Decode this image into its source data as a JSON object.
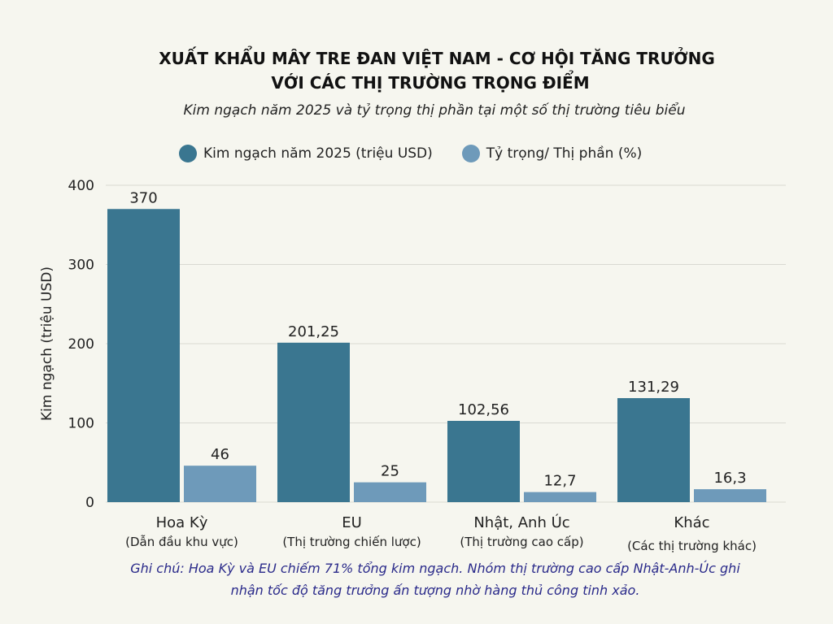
{
  "title_line1": "XUẤT KHẨU MÂY TRE ĐAN VIỆT NAM - CƠ HỘI TĂNG TRƯỞNG",
  "title_line2": "VỚI CÁC THỊ TRƯỜNG TRỌNG ĐIỂM",
  "subtitle": "Kim ngạch năm 2025 và tỷ trọng thị phần tại một số thị trường tiêu biểu",
  "note_line1": "Ghi chú: Hoa Kỳ và EU chiếm 71% tổng kim ngạch. Nhóm thị trường cao cấp Nhật-Anh-Úc ghi",
  "note_line2": "nhận tốc độ tăng trưởng ấn tượng nhờ hàng thủ công tinh xảo.",
  "chart_data": {
    "type": "bar",
    "ylabel": "Kim ngạch (triệu USD)",
    "ylim": [
      0,
      400
    ],
    "yticks": [
      "0",
      "100",
      "200",
      "300",
      "400"
    ],
    "grid": true,
    "legend_position": "top",
    "categories": [
      "Hoa Kỳ",
      "EU",
      "Nhật, Anh Úc",
      "Khác"
    ],
    "category_subtitles": [
      "(Dẫn đầu khu vực)",
      "(Thị trường chiến lược)",
      "(Thị trường cao cấp)",
      "(Các thị trường khác)"
    ],
    "series": [
      {
        "name": "Kim ngạch năm 2025 (triệu USD)",
        "color": "#3a7690",
        "values": [
          370,
          201.25,
          102.56,
          131.29
        ],
        "labels": [
          "370",
          "201,25",
          "102,56",
          "131,29"
        ]
      },
      {
        "name": "Tỷ trọng/ Thị phần (%)",
        "color": "#6e9aba",
        "values": [
          46,
          25,
          12.7,
          16.3
        ],
        "labels": [
          "46",
          "25",
          "12,7",
          "16,3"
        ]
      }
    ]
  }
}
